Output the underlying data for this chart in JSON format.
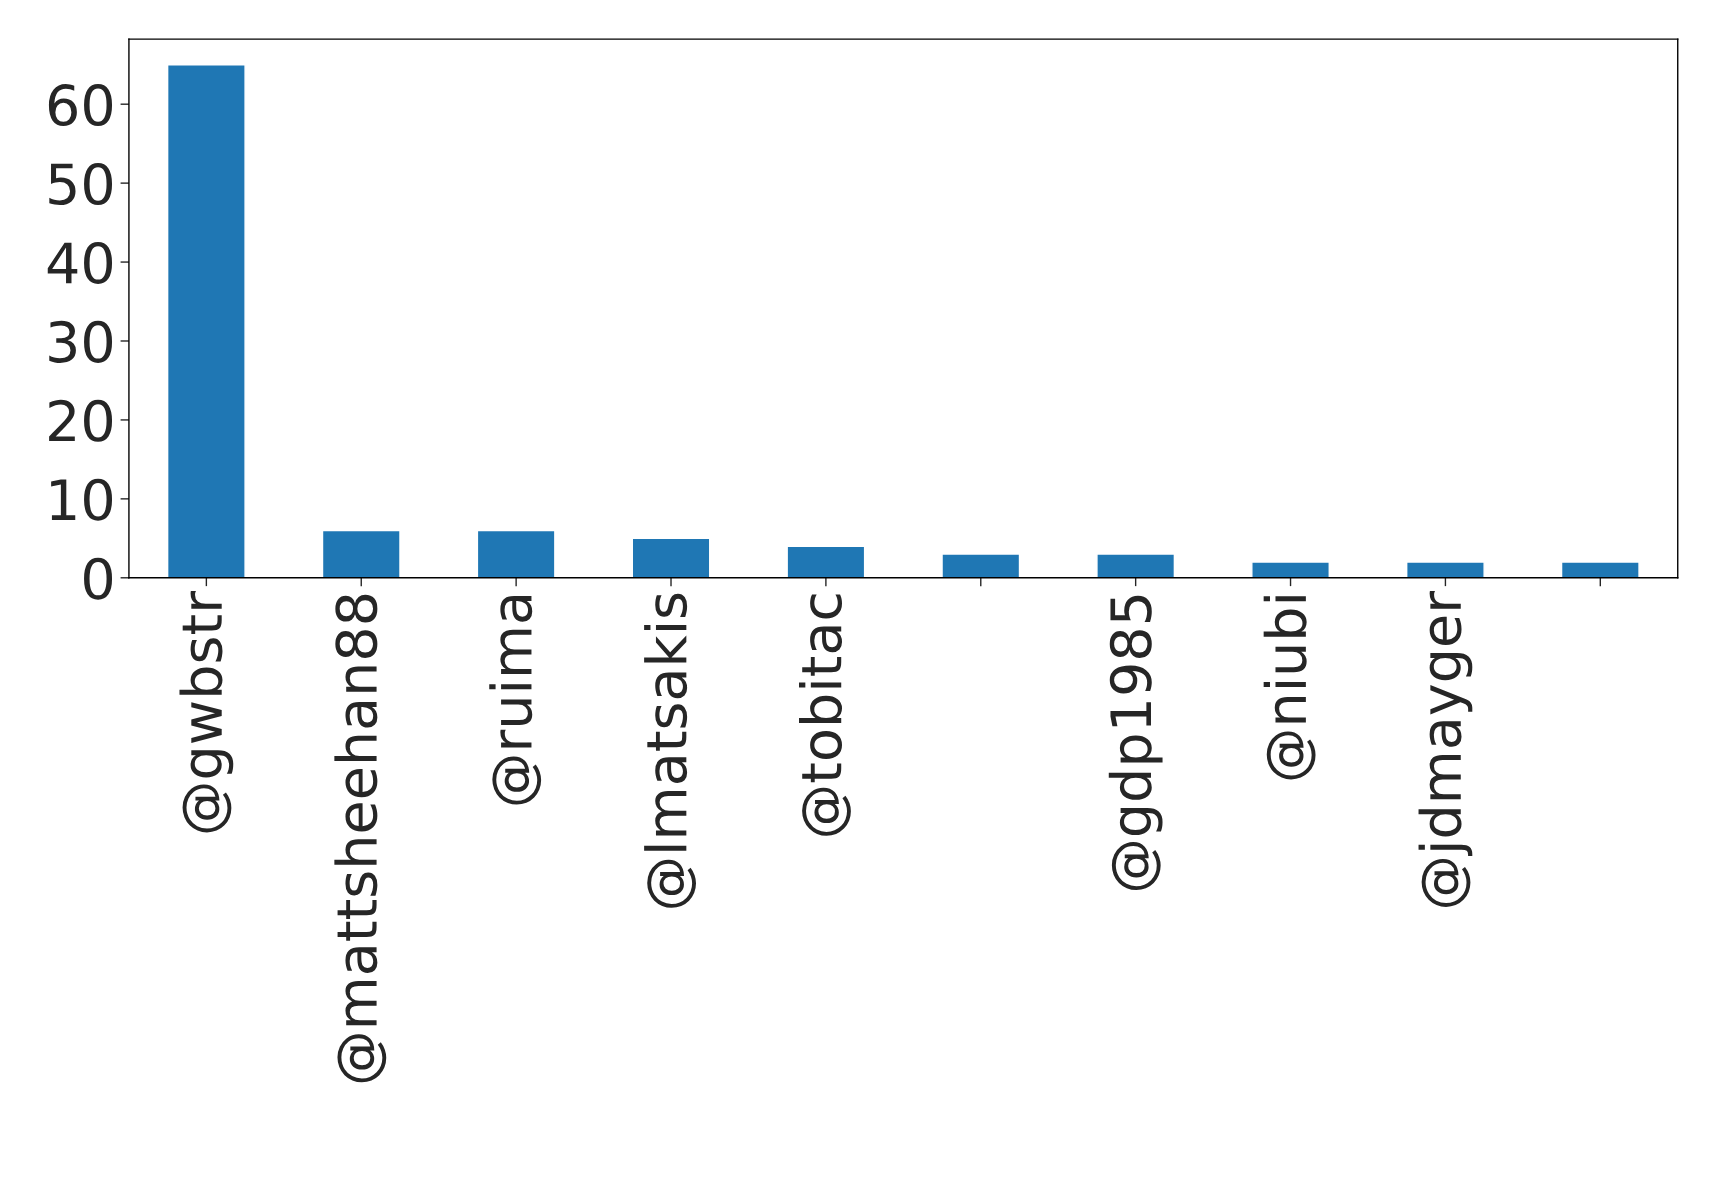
{
  "chart_data": {
    "type": "bar",
    "categories": [
      "@gwbstr",
      "@mattsheehan88",
      "@ruima",
      "@lmatsakis",
      "@tobitac",
      null,
      "@gdp1985",
      "@niubi",
      "@jdmayger",
      null
    ],
    "values": [
      65,
      6,
      6,
      5,
      4,
      3,
      3,
      2,
      2,
      2
    ],
    "color": "#1f77b4",
    "ylim": [
      0,
      68.25
    ],
    "yticks": [
      0,
      10,
      20,
      30,
      40,
      50,
      60
    ],
    "grid": false
  }
}
